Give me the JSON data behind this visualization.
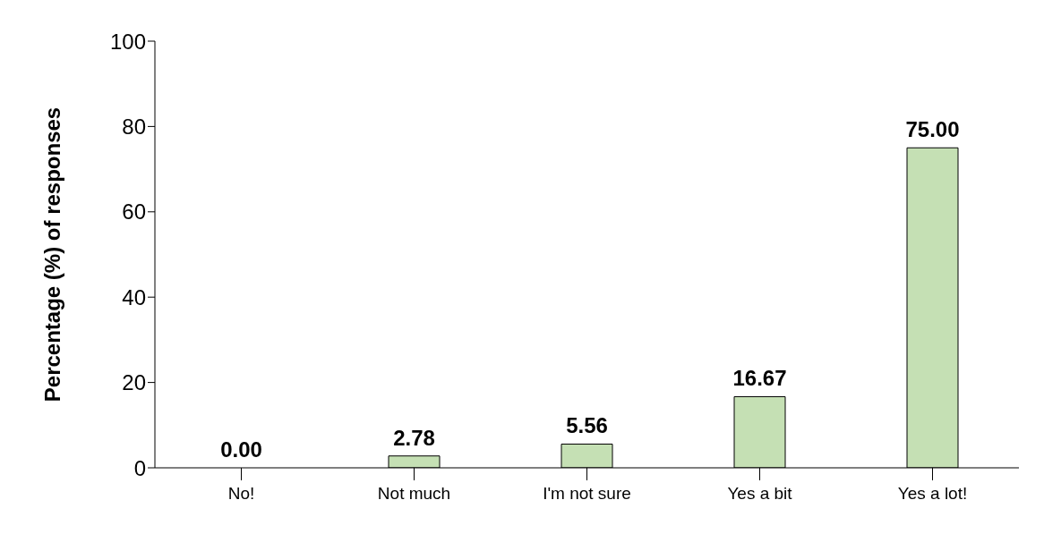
{
  "chart_data": {
    "type": "bar",
    "ylabel": "Percentage (%) of responses",
    "categories": [
      "No!",
      "Not much",
      "I'm not sure",
      "Yes a bit",
      "Yes a lot!"
    ],
    "values": [
      0.0,
      2.78,
      5.56,
      16.67,
      75.0
    ],
    "color": "#c5e0b4",
    "ylim": [
      0,
      100
    ],
    "yticks": [
      0,
      20,
      40,
      60,
      80,
      100
    ],
    "data_labels": true,
    "value_labels": [
      "0.00",
      "2.78",
      "5.56",
      "16.67",
      "75.00"
    ],
    "grid": false,
    "legend": false
  }
}
